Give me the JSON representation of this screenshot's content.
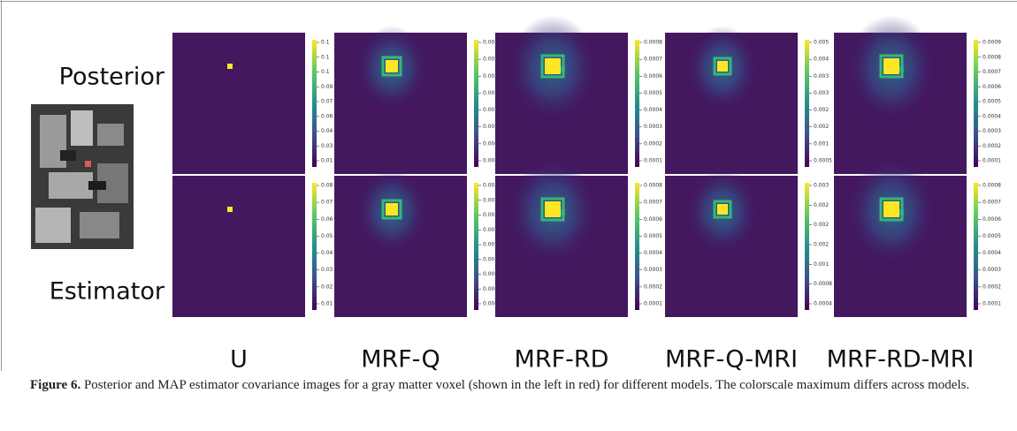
{
  "figure": {
    "row_labels": [
      "Posterior",
      "Estimator"
    ],
    "columns": [
      {
        "label": "U",
        "colorbars": [
          [
            "0.1",
            "0.1",
            "0.1",
            "0.09",
            "0.07",
            "0.06",
            "0.04",
            "0.03",
            "0.01"
          ],
          [
            "0.08",
            "0.07",
            "0.06",
            "0.05",
            "0.04",
            "0.03",
            "0.02",
            "0.01"
          ]
        ]
      },
      {
        "label": "MRF-Q",
        "colorbars": [
          [
            "0.002",
            "0.002",
            "0.002",
            "0.002",
            "0.001",
            "0.0009",
            "0.0006",
            "0.0003"
          ],
          [
            "0.002",
            "0.002",
            "0.002",
            "0.002",
            "0.001",
            "0.001",
            "0.0008",
            "0.0005",
            "0.0003"
          ]
        ]
      },
      {
        "label": "MRF-RD",
        "colorbars": [
          [
            "0.0008",
            "0.0007",
            "0.0006",
            "0.0005",
            "0.0004",
            "0.0003",
            "0.0002",
            "0.0001"
          ],
          [
            "0.0008",
            "0.0007",
            "0.0006",
            "0.0005",
            "0.0004",
            "0.0003",
            "0.0002",
            "0.0001"
          ]
        ]
      },
      {
        "label": "MRF-Q-MRI",
        "colorbars": [
          [
            "0.005",
            "0.004",
            "0.003",
            "0.003",
            "0.002",
            "0.002",
            "0.001",
            "0.0005"
          ],
          [
            "0.003",
            "0.002",
            "0.002",
            "0.002",
            "0.001",
            "0.0008",
            "0.0004"
          ]
        ]
      },
      {
        "label": "MRF-RD-MRI",
        "colorbars": [
          [
            "0.0009",
            "0.0008",
            "0.0007",
            "0.0006",
            "0.0005",
            "0.0004",
            "0.0003",
            "0.0002",
            "0.0001"
          ],
          [
            "0.0008",
            "0.0007",
            "0.0006",
            "0.0005",
            "0.0004",
            "0.0003",
            "0.0002",
            "0.0001"
          ]
        ]
      }
    ],
    "caption": {
      "label": "Figure 6.",
      "text": "Posterior and MAP estimator covariance images for a gray matter voxel (shown in the left in red) for different models. The colorscale maximum differs across models."
    }
  }
}
